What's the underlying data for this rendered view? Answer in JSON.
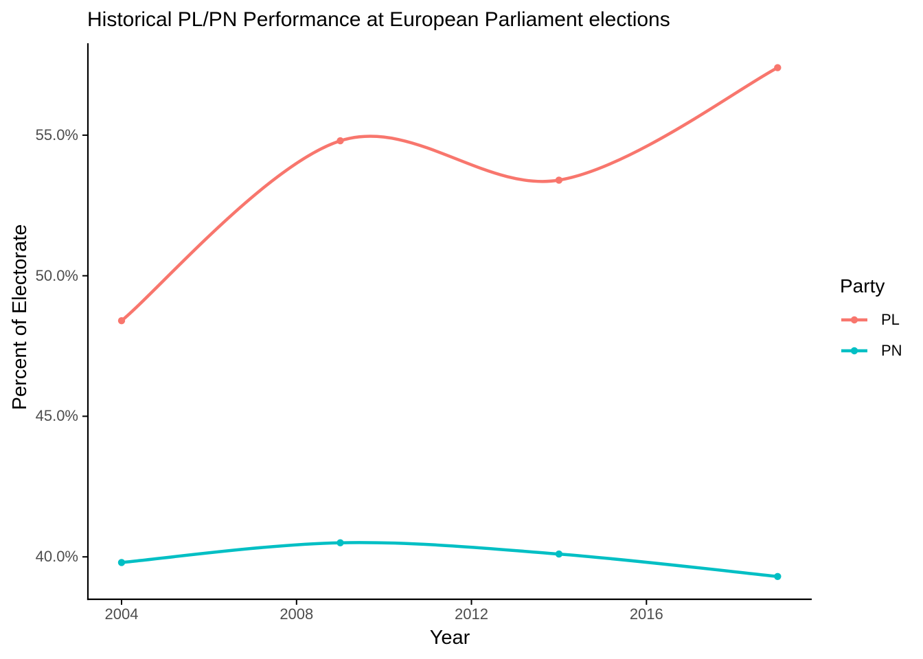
{
  "title": "Historical PL/PN Performance at European Parliament elections",
  "chart_data": {
    "type": "line",
    "title": "Historical PL/PN Performance at European Parliament elections",
    "xlabel": "Year",
    "ylabel": "Percent of Electorate",
    "x": [
      2004,
      2009,
      2014,
      2019
    ],
    "series": [
      {
        "name": "PL",
        "color": "#F8766D",
        "values": [
          48.4,
          54.8,
          53.4,
          57.4
        ]
      },
      {
        "name": "PN",
        "color": "#00BFC4",
        "values": [
          39.8,
          40.5,
          40.1,
          39.3
        ]
      }
    ],
    "x_tick_values": [
      2004,
      2008,
      2012,
      2016
    ],
    "x_tick_labels": [
      "2004",
      "2008",
      "2012",
      "2016"
    ],
    "y_tick_values": [
      40,
      45,
      50,
      55
    ],
    "y_tick_labels": [
      "40.0%",
      "45.0%",
      "50.0%",
      "55.0%"
    ],
    "xlim": [
      2003.23,
      2019.78
    ],
    "ylim": [
      38.49,
      58.27
    ],
    "grid": false,
    "smooth": true,
    "markers": true,
    "legend": {
      "title": "Party",
      "position": "right",
      "entries": [
        "PL",
        "PN"
      ]
    }
  },
  "colors": {
    "background": "#FFFFFF",
    "axis_line": "#000000",
    "tick_mark": "#000000",
    "tick_label": "#4D4D4D",
    "text": "#000000"
  }
}
